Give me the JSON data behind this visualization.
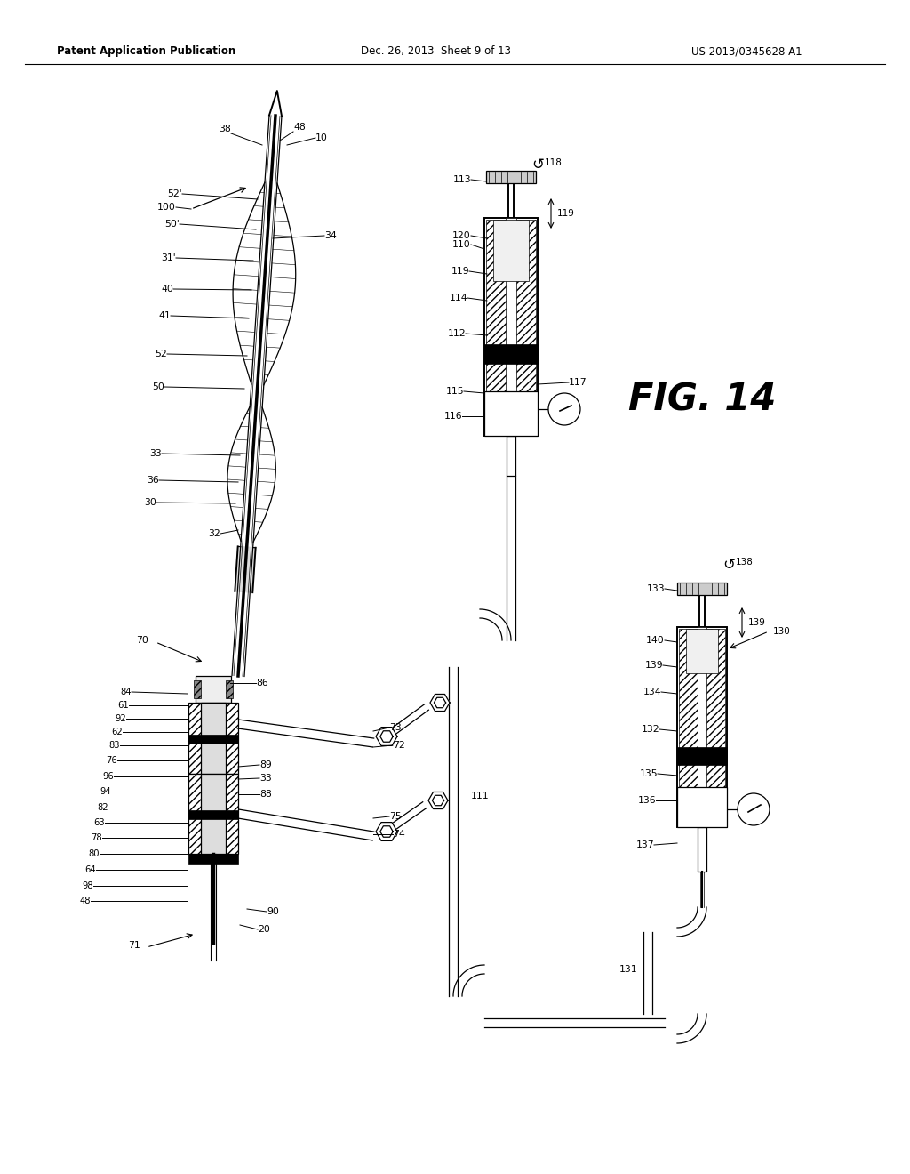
{
  "title_left": "Patent Application Publication",
  "title_mid": "Dec. 26, 2013  Sheet 9 of 13",
  "title_right": "US 2013/0345628 A1",
  "fig_label": "FIG. 14",
  "background_color": "#ffffff"
}
